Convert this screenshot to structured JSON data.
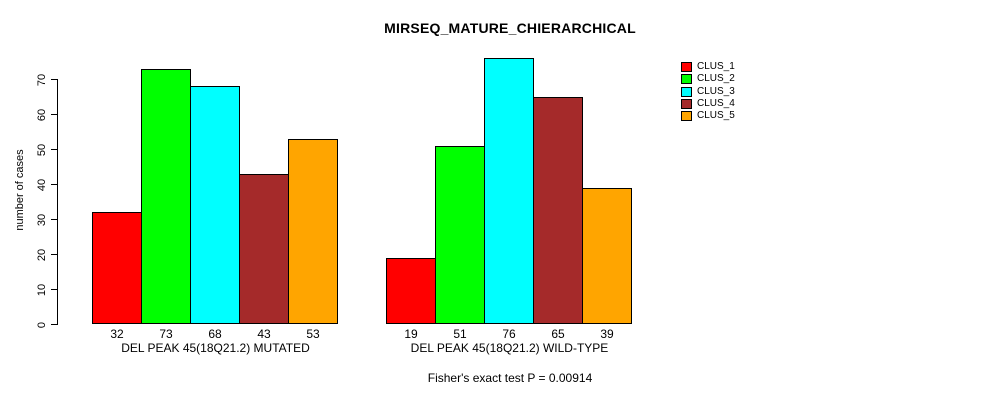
{
  "title": "MIRSEQ_MATURE_CHIERARCHICAL",
  "footer": "Fisher's exact test P = 0.00914",
  "chart_data": {
    "type": "bar",
    "title": "MIRSEQ_MATURE_CHIERARCHICAL",
    "xlabel": "",
    "ylabel": "number of cases",
    "ylim": [
      0,
      70
    ],
    "yticks": [
      0,
      10,
      20,
      30,
      40,
      50,
      60,
      70
    ],
    "grid": false,
    "legend_position": "right",
    "bar_value_labels_shown": true,
    "categories": [
      "DEL PEAK 45(18Q21.2) MUTATED",
      "DEL PEAK 45(18Q21.2) WILD-TYPE"
    ],
    "series": [
      {
        "name": "CLUS_1",
        "color": "#FF0000",
        "values": [
          32,
          19
        ]
      },
      {
        "name": "CLUS_2",
        "color": "#00FF00",
        "values": [
          73,
          51
        ]
      },
      {
        "name": "CLUS_3",
        "color": "#00FFFF",
        "values": [
          68,
          76
        ]
      },
      {
        "name": "CLUS_4",
        "color": "#A52A2A",
        "values": [
          43,
          65
        ]
      },
      {
        "name": "CLUS_5",
        "color": "#FFA500",
        "values": [
          53,
          39
        ]
      }
    ],
    "annotation": "Fisher's exact test P = 0.00914"
  }
}
